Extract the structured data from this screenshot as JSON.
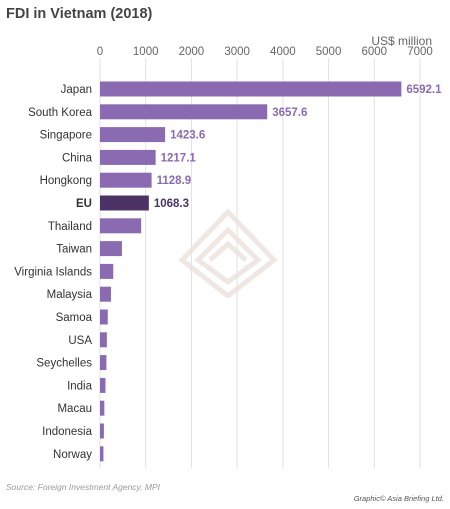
{
  "header": {
    "title": "FDI in Vietnam (2018)",
    "unit": "US$ million"
  },
  "footer": {
    "source": "Source: Foreign Investment Agency, MPI",
    "credit": "Graphic© Asia Briefing Ltd."
  },
  "colors": {
    "bar": "#8a6bb1",
    "bar_highlight": "#4b3366",
    "label_value": "#8a6bb1",
    "label_value_highlight": "#4b3366"
  },
  "chart_data": {
    "type": "bar",
    "orientation": "horizontal",
    "title": "FDI in Vietnam (2018)",
    "xlabel": "US$ million",
    "xlim": [
      0,
      7000
    ],
    "xticks": [
      0,
      1000,
      2000,
      3000,
      4000,
      5000,
      6000,
      7000
    ],
    "grid": true,
    "categories": [
      "Japan",
      "South Korea",
      "Singapore",
      "China",
      "Hongkong",
      "EU",
      "Thailand",
      "Taiwan",
      "Virginia Islands",
      "Malaysia",
      "Samoa",
      "USA",
      "Seychelles",
      "India",
      "Macau",
      "Indonesia",
      "Norway"
    ],
    "values": [
      6592.1,
      3657.6,
      1423.6,
      1217.1,
      1128.9,
      1068.3,
      900,
      480,
      290,
      240,
      170,
      150,
      140,
      120,
      95,
      85,
      75
    ],
    "value_labels": [
      "6592.1",
      "3657.6",
      "1423.6",
      "1217.1",
      "1128.9",
      "1068.3",
      "",
      "",
      "",
      "",
      "",
      "",
      "",
      "",
      "",
      "",
      ""
    ],
    "highlight": "EU"
  }
}
